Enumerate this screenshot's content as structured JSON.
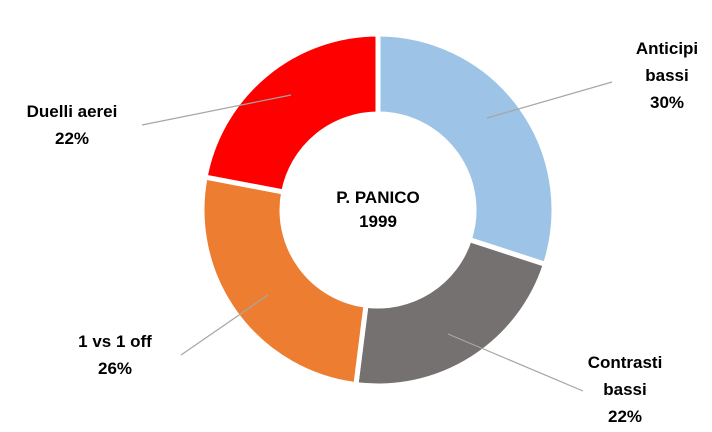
{
  "chart_data": {
    "type": "pie",
    "variant": "donut",
    "center_label": [
      "P. PANICO",
      "1999"
    ],
    "slices": [
      {
        "label": [
          "Anticipi",
          "bassi"
        ],
        "value": 30,
        "value_label": "30%",
        "color": "#9DC3E6"
      },
      {
        "label": [
          "Contrasti",
          "bassi"
        ],
        "value": 22,
        "value_label": "22%",
        "color": "#767171"
      },
      {
        "label": [
          "1 vs 1 off"
        ],
        "value": 26,
        "value_label": "26%",
        "color": "#ED7D31"
      },
      {
        "label": [
          "Duelli aerei"
        ],
        "value": 22,
        "value_label": "22%",
        "color": "#FF0000"
      }
    ],
    "legend": "none",
    "leader_lines": true
  }
}
